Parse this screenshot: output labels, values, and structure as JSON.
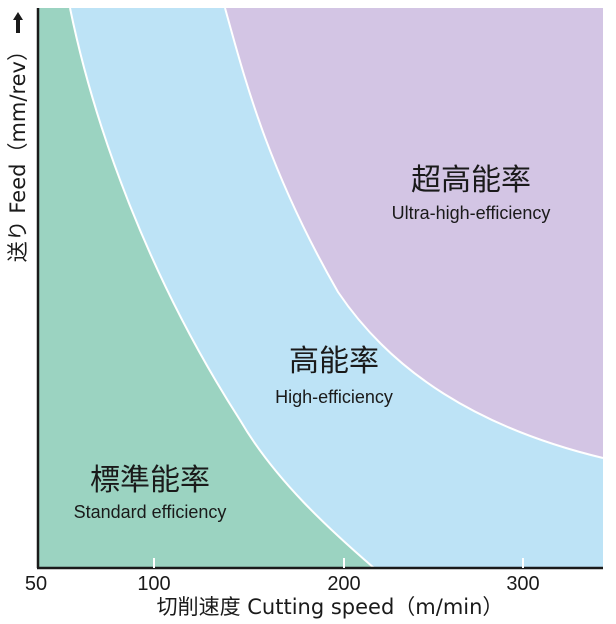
{
  "chart_data": {
    "type": "area",
    "x_ticks": [
      "50",
      "100",
      "200",
      "300"
    ],
    "xlabel": "切削速度 Cutting speed（m/min）",
    "ylabel": "送り Feed（mm/rev）",
    "regions": [
      {
        "ja": "標準能率",
        "en": "Standard efficiency",
        "color": "#9bd3c1"
      },
      {
        "ja": "高能率",
        "en": "High-efficiency",
        "color": "#bde3f6"
      },
      {
        "ja": "超高能率",
        "en": "Ultra-high-efficiency",
        "color": "#d3c5e4"
      }
    ],
    "axis_color": "#1a1a1a",
    "grid": false,
    "legend": "none"
  }
}
